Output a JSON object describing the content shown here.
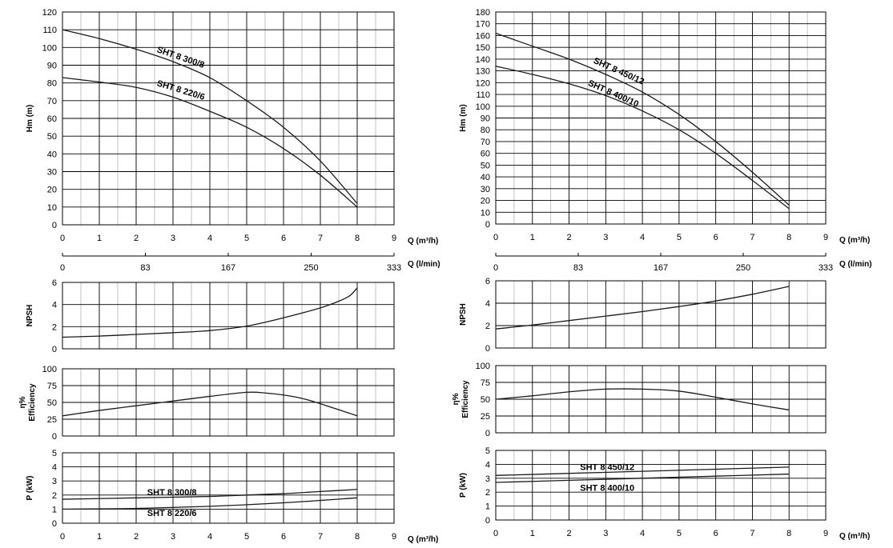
{
  "chart_data": [
    {
      "id": "left_head",
      "type": "line",
      "ylabel": "Hm  (m)",
      "xlabel": "Q (m³/h)",
      "xlim": [
        0,
        9
      ],
      "ylim": [
        0,
        120
      ],
      "xticks": [
        0,
        1,
        2,
        3,
        4,
        5,
        6,
        7,
        8,
        9
      ],
      "yticks": [
        0,
        10,
        20,
        30,
        40,
        50,
        60,
        70,
        80,
        90,
        100,
        110,
        120
      ],
      "grid": true,
      "series": [
        {
          "name": "SHT 8 300/8",
          "x": [
            0,
            1,
            2,
            3,
            4,
            5,
            6,
            7,
            8
          ],
          "y": [
            110,
            105,
            99,
            92,
            83,
            70,
            55,
            36,
            12
          ]
        },
        {
          "name": "SHT 8 220/6",
          "x": [
            0,
            1,
            2,
            3,
            4,
            5,
            6,
            7,
            8
          ],
          "y": [
            83,
            80.5,
            77.5,
            72,
            64,
            55,
            43,
            28,
            10
          ]
        }
      ]
    },
    {
      "id": "left_lmin",
      "type": "axis",
      "xlabel": "Q (l/min)",
      "xlim": [
        0,
        9
      ],
      "ticks": [
        {
          "label": "0",
          "x": 0
        },
        {
          "label": "83",
          "x": 2.25
        },
        {
          "label": "167",
          "x": 4.5
        },
        {
          "label": "250",
          "x": 6.75
        },
        {
          "label": "333",
          "x": 9
        }
      ]
    },
    {
      "id": "left_npsh",
      "type": "line",
      "ylabel": "NPSH",
      "xlim": [
        0,
        9
      ],
      "ylim": [
        0,
        6
      ],
      "xticks": [],
      "yticks": [
        0,
        2,
        4,
        6
      ],
      "grid": true,
      "series": [
        {
          "name": "",
          "x": [
            0,
            1,
            2,
            3,
            4,
            5,
            6,
            7,
            7.5,
            7.8,
            8
          ],
          "y": [
            1.05,
            1.15,
            1.3,
            1.45,
            1.65,
            2.05,
            2.8,
            3.7,
            4.3,
            4.8,
            5.5
          ]
        }
      ]
    },
    {
      "id": "left_eff",
      "type": "line",
      "ylabel": "η%",
      "ylabel2": "Efficiency",
      "xlim": [
        0,
        9
      ],
      "ylim": [
        0,
        100
      ],
      "xticks": [],
      "yticks": [
        0,
        25,
        50,
        75,
        100
      ],
      "grid": true,
      "series": [
        {
          "name": "",
          "x": [
            0,
            1,
            2,
            3,
            4,
            5,
            5.5,
            6,
            6.5,
            7,
            8
          ],
          "y": [
            30,
            38,
            45,
            52,
            59,
            65,
            64,
            61,
            56,
            48,
            30
          ]
        }
      ]
    },
    {
      "id": "left_power",
      "type": "line",
      "ylabel": "P  (kW)",
      "xlabel": "Q (m³/h)",
      "xlim": [
        0,
        9
      ],
      "ylim": [
        0,
        5
      ],
      "xticks": [
        0,
        1,
        2,
        3,
        4,
        5,
        6,
        7,
        8,
        9
      ],
      "yticks": [
        0,
        1,
        2,
        3,
        4,
        5
      ],
      "grid": true,
      "series": [
        {
          "name": "SHT 8 300/8",
          "x": [
            0,
            2,
            4,
            5,
            6,
            7,
            8
          ],
          "y": [
            1.7,
            1.8,
            1.9,
            2.0,
            2.1,
            2.25,
            2.4
          ]
        },
        {
          "name": "SHT 8 220/6",
          "x": [
            0,
            2,
            4,
            6,
            8
          ],
          "y": [
            1.0,
            1.05,
            1.2,
            1.45,
            1.8
          ]
        }
      ]
    },
    {
      "id": "right_head",
      "type": "line",
      "ylabel": "Hm  (m)",
      "xlabel": "Q (m³/h)",
      "xlim": [
        0,
        9
      ],
      "ylim": [
        0,
        180
      ],
      "xticks": [
        0,
        1,
        2,
        3,
        4,
        5,
        6,
        7,
        8,
        9
      ],
      "yticks": [
        0,
        10,
        20,
        30,
        40,
        50,
        60,
        70,
        80,
        90,
        100,
        110,
        120,
        130,
        140,
        150,
        160,
        170,
        180
      ],
      "grid": true,
      "series": [
        {
          "name": "SHT 8 450/12",
          "x": [
            0,
            1,
            2,
            3,
            4,
            5,
            6,
            7,
            8
          ],
          "y": [
            162,
            151,
            140,
            127,
            112,
            93,
            70,
            44,
            16
          ]
        },
        {
          "name": "SHT 8 400/10",
          "x": [
            0,
            1,
            2,
            3,
            4,
            5,
            6,
            7,
            8
          ],
          "y": [
            134,
            127,
            119,
            109,
            96,
            80,
            60,
            37,
            13
          ]
        }
      ]
    },
    {
      "id": "right_lmin",
      "type": "axis",
      "xlabel": "Q (l/min)",
      "xlim": [
        0,
        9
      ],
      "ticks": [
        {
          "label": "0",
          "x": 0
        },
        {
          "label": "83",
          "x": 2.25
        },
        {
          "label": "167",
          "x": 4.5
        },
        {
          "label": "250",
          "x": 6.75
        },
        {
          "label": "333",
          "x": 9
        }
      ]
    },
    {
      "id": "right_npsh",
      "type": "line",
      "ylabel": "NPSH",
      "xlim": [
        0,
        9
      ],
      "ylim": [
        0,
        6
      ],
      "xticks": [],
      "yticks": [
        0,
        2,
        4,
        6
      ],
      "grid": true,
      "series": [
        {
          "name": "",
          "x": [
            0,
            1,
            2,
            3,
            4,
            5,
            6,
            7,
            8
          ],
          "y": [
            1.7,
            2.05,
            2.45,
            2.85,
            3.25,
            3.7,
            4.2,
            4.8,
            5.5
          ]
        }
      ]
    },
    {
      "id": "right_eff",
      "type": "line",
      "ylabel": "η%",
      "ylabel2": "Efficiency",
      "xlim": [
        0,
        9
      ],
      "ylim": [
        0,
        100
      ],
      "xticks": [],
      "yticks": [
        0,
        25,
        50,
        75,
        100
      ],
      "grid": true,
      "series": [
        {
          "name": "",
          "x": [
            0,
            1,
            2,
            3,
            4,
            5,
            6,
            7,
            8
          ],
          "y": [
            50,
            55,
            61,
            65,
            65,
            62,
            53,
            43,
            34
          ]
        }
      ]
    },
    {
      "id": "right_power",
      "type": "line",
      "ylabel": "P  (kW)",
      "xlabel": "Q (m³/h)",
      "xlim": [
        0,
        9
      ],
      "ylim": [
        0,
        5
      ],
      "xticks": [
        0,
        1,
        2,
        3,
        4,
        5,
        6,
        7,
        8,
        9
      ],
      "yticks": [
        0,
        1,
        2,
        3,
        4,
        5
      ],
      "grid": true,
      "series": [
        {
          "name": "SHT 8 450/12",
          "x": [
            0,
            2,
            4,
            6,
            8
          ],
          "y": [
            3.2,
            3.35,
            3.5,
            3.65,
            3.8
          ]
        },
        {
          "name": "SHT 8 400/10",
          "x": [
            0,
            2,
            4,
            6,
            8
          ],
          "y": [
            2.7,
            2.85,
            3.0,
            3.15,
            3.3
          ]
        }
      ]
    }
  ]
}
